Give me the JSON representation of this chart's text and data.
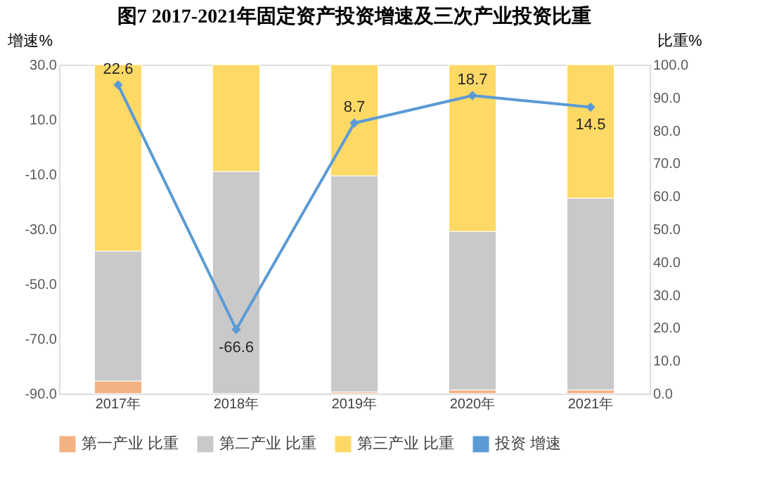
{
  "chart_data": {
    "type": "bar",
    "stacked": true,
    "title": "图7  2017-2021年固定资产投资增速及三次产业投资比重",
    "ylabel": "增速%",
    "y2label": "比重%",
    "categories": [
      "2017年",
      "2018年",
      "2019年",
      "2020年",
      "2021年"
    ],
    "series": [
      {
        "name": "第一产业 比重",
        "color": "#f4b183",
        "axis": "y2",
        "values": [
          3.8,
          0.0,
          0.5,
          1.1,
          1.1
        ]
      },
      {
        "name": "第二产业 比重",
        "color": "#c9c9c9",
        "axis": "y2",
        "values": [
          39.5,
          67.5,
          65.7,
          48.2,
          58.3
        ]
      },
      {
        "name": "第三产业 比重",
        "color": "#ffd966",
        "axis": "y2",
        "values": [
          56.7,
          32.5,
          33.8,
          50.7,
          40.6
        ]
      },
      {
        "name": "投资 增速",
        "type": "line",
        "color": "#5b9bd5",
        "marker": "diamond",
        "values": [
          22.6,
          -66.6,
          8.7,
          18.7,
          14.5
        ],
        "value_labels": [
          "22.6",
          "-66.6",
          "8.7",
          "18.7",
          "14.5"
        ]
      }
    ],
    "ylim": [
      -90,
      30
    ],
    "yticks": [
      {
        "value": -90,
        "label": "-90.0"
      },
      {
        "value": -70,
        "label": "-70.0"
      },
      {
        "value": -50,
        "label": "-50.0"
      },
      {
        "value": -30,
        "label": "-30.0"
      },
      {
        "value": -10,
        "label": "-10.0"
      },
      {
        "value": 10,
        "label": "10.0"
      },
      {
        "value": 30,
        "label": "30.0"
      }
    ],
    "y2lim": [
      0,
      100
    ],
    "y2ticks": [
      {
        "value": 0,
        "label": "0.0"
      },
      {
        "value": 10,
        "label": "10.0"
      },
      {
        "value": 20,
        "label": "20.0"
      },
      {
        "value": 30,
        "label": "30.0"
      },
      {
        "value": 40,
        "label": "40.0"
      },
      {
        "value": 50,
        "label": "50.0"
      },
      {
        "value": 60,
        "label": "60.0"
      },
      {
        "value": 70,
        "label": "70.0"
      },
      {
        "value": 80,
        "label": "80.0"
      },
      {
        "value": 90,
        "label": "90.0"
      },
      {
        "value": 100,
        "label": "100.0"
      }
    ],
    "grid": false,
    "legend": "bottom"
  }
}
